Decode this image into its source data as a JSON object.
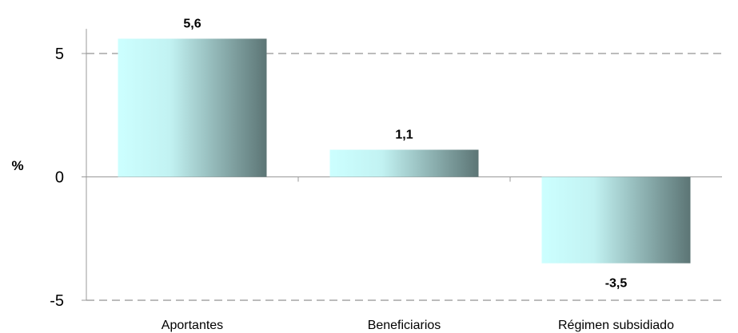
{
  "chart_data": {
    "type": "bar",
    "categories": [
      "Aportantes",
      "Beneficiarios",
      "Régimen subsidiado"
    ],
    "values": [
      5.6,
      1.1,
      -3.5
    ],
    "data_labels": [
      "5,6",
      "1,1",
      "-3,5"
    ],
    "title": "",
    "xlabel": "",
    "ylabel": "%",
    "ylim": [
      -5,
      6
    ],
    "yticks": [
      5,
      0,
      -5
    ],
    "ytick_labels": [
      "5",
      "0",
      "-5"
    ],
    "grid": "dashed horizontal",
    "legend": "none",
    "bar_gradient": [
      "#ccffff",
      "#5c7575"
    ]
  }
}
